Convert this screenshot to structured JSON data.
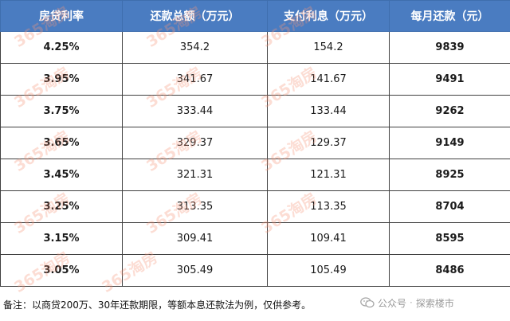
{
  "table": {
    "headers": [
      "房贷利率",
      "还款总额（万元）",
      "支付利息（万元）",
      "每月还款（元）"
    ],
    "rows": [
      [
        "4.25%",
        "354.2",
        "154.2",
        "9839"
      ],
      [
        "3.95%",
        "341.67",
        "141.67",
        "9491"
      ],
      [
        "3.75%",
        "333.44",
        "133.44",
        "9262"
      ],
      [
        "3.65%",
        "329.37",
        "129.37",
        "9149"
      ],
      [
        "3.45%",
        "321.31",
        "121.31",
        "8925"
      ],
      [
        "3.25%",
        "313.35",
        "113.35",
        "8704"
      ],
      [
        "3.15%",
        "309.41",
        "109.41",
        "8595"
      ],
      [
        "3.05%",
        "305.49",
        "105.49",
        "8486"
      ]
    ]
  },
  "note": "备注：以商贷200万、30年还款期限，等额本息还款法为例，仅供参考。",
  "brand": {
    "account": "公众号",
    "name": "探索楼市"
  },
  "watermark": "365淘房",
  "colors": {
    "header_bg": "#4a7cc1",
    "header_text": "#ffffff",
    "watermark": "#f59678"
  }
}
